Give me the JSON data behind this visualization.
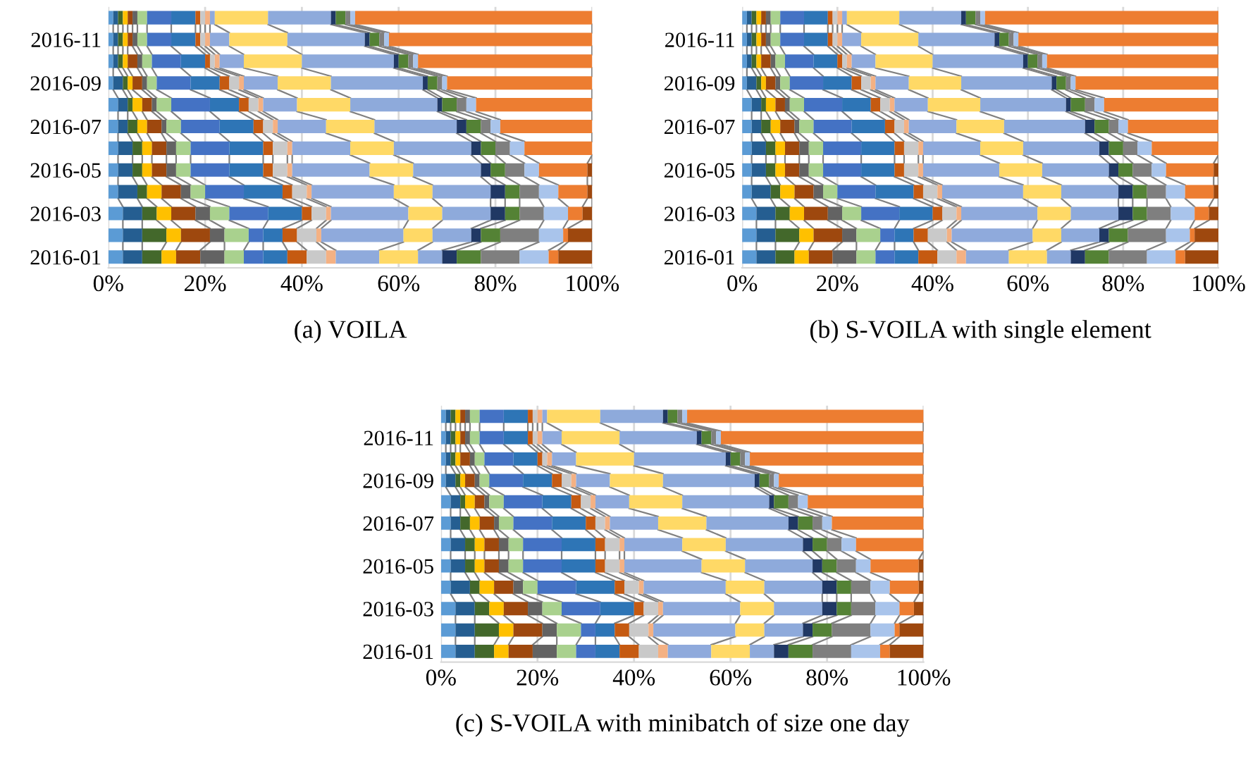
{
  "chart_data": [
    {
      "type": "bar",
      "orientation": "horizontal",
      "stacked": true,
      "title": "(a) VOILA",
      "categories": [
        null,
        "2016-11",
        null,
        "2016-09",
        null,
        "2016-07",
        null,
        "2016-05",
        null,
        "2016-03",
        null,
        "2016-01"
      ],
      "xlim": [
        0,
        100
      ],
      "xticks": [
        {
          "value": 0,
          "label": "0%"
        },
        {
          "value": 20,
          "label": "20%"
        },
        {
          "value": 40,
          "label": "40%"
        },
        {
          "value": 60,
          "label": "60%"
        },
        {
          "value": 80,
          "label": "80%"
        },
        {
          "value": 100,
          "label": "100%"
        }
      ],
      "grid": "x",
      "series": [
        {
          "color": "#5b9bd5",
          "values": [
            1,
            1,
            1,
            1,
            2,
            2,
            2,
            2,
            2,
            3,
            3,
            3
          ]
        },
        {
          "color": "#255e91",
          "values": [
            1,
            1,
            1,
            2,
            2,
            2,
            3,
            3,
            4,
            4,
            4,
            4
          ]
        },
        {
          "color": "#43682b",
          "values": [
            1,
            1,
            1,
            1,
            1,
            2,
            2,
            2,
            2,
            3,
            5,
            4
          ]
        },
        {
          "color": "#ffc000",
          "values": [
            1,
            1,
            1,
            1,
            2,
            2,
            2,
            2,
            3,
            3,
            3,
            3
          ]
        },
        {
          "color": "#9e480e",
          "values": [
            1,
            1,
            2,
            2,
            2,
            3,
            3,
            3,
            4,
            5,
            6,
            5
          ]
        },
        {
          "color": "#636363",
          "values": [
            1,
            1,
            1,
            1,
            1,
            1,
            2,
            2,
            2,
            3,
            3,
            5
          ]
        },
        {
          "color": "#a9d18e",
          "values": [
            2,
            2,
            2,
            2,
            3,
            3,
            3,
            3,
            3,
            4,
            5,
            4
          ]
        },
        {
          "color": "#4472c4",
          "values": [
            5,
            5,
            6,
            7,
            8,
            8,
            8,
            8,
            8,
            8,
            3,
            4
          ]
        },
        {
          "color": "#2e75b6",
          "values": [
            5,
            5,
            5,
            6,
            6,
            7,
            7,
            7,
            8,
            7,
            4,
            5
          ]
        },
        {
          "color": "#c55a11",
          "values": [
            1,
            1,
            1,
            2,
            2,
            2,
            2,
            2,
            2,
            2,
            3,
            4
          ]
        },
        {
          "color": "#c9c9c9",
          "values": [
            1,
            1,
            1,
            2,
            2,
            2,
            3,
            3,
            3,
            3,
            4,
            4
          ]
        },
        {
          "color": "#f4b183",
          "values": [
            1,
            1,
            1,
            1,
            1,
            1,
            1,
            1,
            1,
            1,
            1,
            2
          ]
        },
        {
          "color": "#8faadc",
          "values": [
            1,
            4,
            5,
            7,
            7,
            10,
            12,
            16,
            17,
            16,
            17,
            9
          ]
        },
        {
          "color": "#ffd966",
          "values": [
            11,
            12,
            12,
            11,
            11,
            10,
            9,
            9,
            8,
            7,
            6,
            8
          ]
        },
        {
          "color": "#8eaadb",
          "values": [
            13,
            16,
            19,
            19,
            18,
            17,
            16,
            14,
            12,
            10,
            8,
            5
          ]
        },
        {
          "color": "#203864",
          "values": [
            1,
            1,
            1,
            1,
            1,
            2,
            2,
            2,
            3,
            3,
            2,
            3
          ]
        },
        {
          "color": "#548235",
          "values": [
            2,
            2,
            2,
            2,
            3,
            3,
            3,
            3,
            3,
            3,
            4,
            5
          ]
        },
        {
          "color": "#7f7f7f",
          "values": [
            1,
            1,
            1,
            1,
            2,
            2,
            3,
            4,
            4,
            5,
            8,
            8
          ]
        },
        {
          "color": "#a9c4eb",
          "values": [
            1,
            1,
            1,
            1,
            2,
            2,
            3,
            3,
            4,
            5,
            5,
            6
          ]
        },
        {
          "color": "#ed7d31",
          "values": [
            49,
            42,
            36,
            30,
            24,
            19,
            14,
            10,
            6,
            3,
            1,
            2
          ]
        },
        {
          "color": "#9e480e",
          "values": [
            0,
            0,
            0,
            0,
            0,
            0,
            0,
            1,
            1,
            2,
            5,
            7
          ]
        }
      ]
    },
    {
      "type": "bar",
      "orientation": "horizontal",
      "stacked": true,
      "title": "(b) S-VOILA with single element",
      "categories": [
        null,
        "2016-11",
        null,
        "2016-09",
        null,
        "2016-07",
        null,
        "2016-05",
        null,
        "2016-03",
        null,
        "2016-01"
      ],
      "xlim": [
        0,
        100
      ],
      "xticks": [
        {
          "value": 0,
          "label": "0%"
        },
        {
          "value": 20,
          "label": "20%"
        },
        {
          "value": 40,
          "label": "40%"
        },
        {
          "value": 60,
          "label": "60%"
        },
        {
          "value": 80,
          "label": "80%"
        },
        {
          "value": 100,
          "label": "100%"
        }
      ],
      "grid": "x",
      "series": [
        {
          "color": "#5b9bd5",
          "values": [
            1,
            1,
            1,
            1,
            2,
            2,
            2,
            2,
            2,
            3,
            3,
            3
          ]
        },
        {
          "color": "#255e91",
          "values": [
            1,
            1,
            1,
            2,
            2,
            2,
            3,
            3,
            4,
            4,
            4,
            4
          ]
        },
        {
          "color": "#43682b",
          "values": [
            1,
            1,
            1,
            1,
            1,
            2,
            2,
            2,
            2,
            3,
            5,
            4
          ]
        },
        {
          "color": "#ffc000",
          "values": [
            1,
            1,
            1,
            1,
            2,
            2,
            2,
            2,
            3,
            3,
            3,
            3
          ]
        },
        {
          "color": "#9e480e",
          "values": [
            1,
            1,
            2,
            2,
            2,
            3,
            3,
            3,
            4,
            5,
            6,
            5
          ]
        },
        {
          "color": "#636363",
          "values": [
            1,
            1,
            1,
            1,
            1,
            1,
            2,
            2,
            2,
            3,
            3,
            5
          ]
        },
        {
          "color": "#a9d18e",
          "values": [
            2,
            2,
            2,
            2,
            3,
            3,
            3,
            3,
            3,
            4,
            5,
            4
          ]
        },
        {
          "color": "#4472c4",
          "values": [
            5,
            5,
            6,
            7,
            8,
            8,
            8,
            8,
            8,
            8,
            3,
            4
          ]
        },
        {
          "color": "#2e75b6",
          "values": [
            5,
            5,
            5,
            6,
            6,
            7,
            7,
            7,
            8,
            7,
            4,
            5
          ]
        },
        {
          "color": "#c55a11",
          "values": [
            1,
            1,
            1,
            2,
            2,
            2,
            2,
            2,
            2,
            2,
            3,
            4
          ]
        },
        {
          "color": "#c9c9c9",
          "values": [
            1,
            1,
            1,
            2,
            2,
            2,
            3,
            3,
            3,
            3,
            4,
            4
          ]
        },
        {
          "color": "#f4b183",
          "values": [
            1,
            1,
            1,
            1,
            1,
            1,
            1,
            1,
            1,
            1,
            1,
            2
          ]
        },
        {
          "color": "#8faadc",
          "values": [
            1,
            4,
            5,
            7,
            7,
            10,
            12,
            16,
            17,
            16,
            17,
            9
          ]
        },
        {
          "color": "#ffd966",
          "values": [
            11,
            12,
            12,
            11,
            11,
            10,
            9,
            9,
            8,
            7,
            6,
            8
          ]
        },
        {
          "color": "#8eaadb",
          "values": [
            13,
            16,
            19,
            19,
            18,
            17,
            16,
            14,
            12,
            10,
            8,
            5
          ]
        },
        {
          "color": "#203864",
          "values": [
            1,
            1,
            1,
            1,
            1,
            2,
            2,
            2,
            3,
            3,
            2,
            3
          ]
        },
        {
          "color": "#548235",
          "values": [
            2,
            2,
            2,
            2,
            3,
            3,
            3,
            3,
            3,
            3,
            4,
            5
          ]
        },
        {
          "color": "#7f7f7f",
          "values": [
            1,
            1,
            1,
            1,
            2,
            2,
            3,
            4,
            4,
            5,
            8,
            8
          ]
        },
        {
          "color": "#a9c4eb",
          "values": [
            1,
            1,
            1,
            1,
            2,
            2,
            3,
            3,
            4,
            5,
            5,
            6
          ]
        },
        {
          "color": "#ed7d31",
          "values": [
            49,
            42,
            36,
            30,
            24,
            19,
            14,
            10,
            6,
            3,
            1,
            2
          ]
        },
        {
          "color": "#9e480e",
          "values": [
            0,
            0,
            0,
            0,
            0,
            0,
            0,
            1,
            1,
            2,
            5,
            7
          ]
        }
      ]
    },
    {
      "type": "bar",
      "orientation": "horizontal",
      "stacked": true,
      "title": "(c) S-VOILA with minibatch of size one day",
      "categories": [
        null,
        "2016-11",
        null,
        "2016-09",
        null,
        "2016-07",
        null,
        "2016-05",
        null,
        "2016-03",
        null,
        "2016-01"
      ],
      "xlim": [
        0,
        100
      ],
      "xticks": [
        {
          "value": 0,
          "label": "0%"
        },
        {
          "value": 20,
          "label": "20%"
        },
        {
          "value": 40,
          "label": "40%"
        },
        {
          "value": 60,
          "label": "60%"
        },
        {
          "value": 80,
          "label": "80%"
        },
        {
          "value": 100,
          "label": "100%"
        }
      ],
      "grid": "x",
      "series": [
        {
          "color": "#5b9bd5",
          "values": [
            1,
            1,
            1,
            1,
            2,
            2,
            2,
            2,
            2,
            3,
            3,
            3
          ]
        },
        {
          "color": "#255e91",
          "values": [
            1,
            1,
            1,
            2,
            2,
            2,
            3,
            3,
            4,
            4,
            4,
            4
          ]
        },
        {
          "color": "#43682b",
          "values": [
            1,
            1,
            1,
            1,
            1,
            2,
            2,
            2,
            2,
            3,
            5,
            4
          ]
        },
        {
          "color": "#ffc000",
          "values": [
            1,
            1,
            1,
            1,
            2,
            2,
            2,
            2,
            3,
            3,
            3,
            3
          ]
        },
        {
          "color": "#9e480e",
          "values": [
            1,
            1,
            2,
            2,
            2,
            3,
            3,
            3,
            4,
            5,
            6,
            5
          ]
        },
        {
          "color": "#636363",
          "values": [
            1,
            1,
            1,
            1,
            1,
            1,
            2,
            2,
            2,
            3,
            3,
            5
          ]
        },
        {
          "color": "#a9d18e",
          "values": [
            2,
            2,
            2,
            2,
            3,
            3,
            3,
            3,
            3,
            4,
            5,
            4
          ]
        },
        {
          "color": "#4472c4",
          "values": [
            5,
            5,
            6,
            7,
            8,
            8,
            8,
            8,
            8,
            8,
            3,
            4
          ]
        },
        {
          "color": "#2e75b6",
          "values": [
            5,
            5,
            5,
            6,
            6,
            7,
            7,
            7,
            8,
            7,
            4,
            5
          ]
        },
        {
          "color": "#c55a11",
          "values": [
            1,
            1,
            1,
            2,
            2,
            2,
            2,
            2,
            2,
            2,
            3,
            4
          ]
        },
        {
          "color": "#c9c9c9",
          "values": [
            1,
            1,
            1,
            2,
            2,
            2,
            3,
            3,
            3,
            3,
            4,
            4
          ]
        },
        {
          "color": "#f4b183",
          "values": [
            1,
            1,
            1,
            1,
            1,
            1,
            1,
            1,
            1,
            1,
            1,
            2
          ]
        },
        {
          "color": "#8faadc",
          "values": [
            1,
            4,
            5,
            7,
            7,
            10,
            12,
            16,
            17,
            16,
            17,
            9
          ]
        },
        {
          "color": "#ffd966",
          "values": [
            11,
            12,
            12,
            11,
            11,
            10,
            9,
            9,
            8,
            7,
            6,
            8
          ]
        },
        {
          "color": "#8eaadb",
          "values": [
            13,
            16,
            19,
            19,
            18,
            17,
            16,
            14,
            12,
            10,
            8,
            5
          ]
        },
        {
          "color": "#203864",
          "values": [
            1,
            1,
            1,
            1,
            1,
            2,
            2,
            2,
            3,
            3,
            2,
            3
          ]
        },
        {
          "color": "#548235",
          "values": [
            2,
            2,
            2,
            2,
            3,
            3,
            3,
            3,
            3,
            3,
            4,
            5
          ]
        },
        {
          "color": "#7f7f7f",
          "values": [
            1,
            1,
            1,
            1,
            2,
            2,
            3,
            4,
            4,
            5,
            8,
            8
          ]
        },
        {
          "color": "#a9c4eb",
          "values": [
            1,
            1,
            1,
            1,
            2,
            2,
            3,
            3,
            4,
            5,
            5,
            6
          ]
        },
        {
          "color": "#ed7d31",
          "values": [
            49,
            42,
            36,
            30,
            24,
            19,
            14,
            10,
            6,
            3,
            1,
            2
          ]
        },
        {
          "color": "#9e480e",
          "values": [
            0,
            0,
            0,
            0,
            0,
            0,
            0,
            1,
            1,
            2,
            5,
            7
          ]
        }
      ]
    }
  ]
}
